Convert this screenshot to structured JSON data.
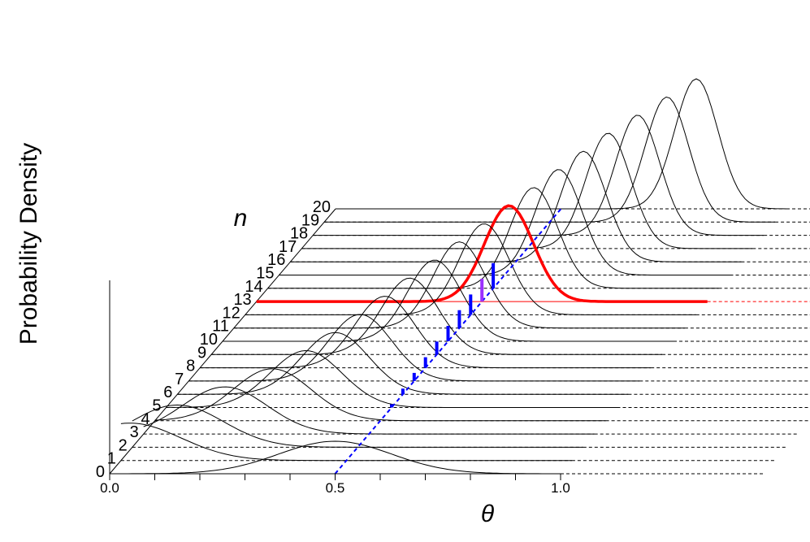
{
  "chart_data": {
    "type": "line",
    "ylabel": "Probability Density",
    "xlabel": "θ",
    "depth_label": "n",
    "xlim": [
      0.0,
      1.0
    ],
    "x_ticks": [
      "0.0",
      "0.5",
      "1.0"
    ],
    "depth_ticks": [
      "0",
      "1",
      "2",
      "3",
      "4",
      "5",
      "6",
      "7",
      "8",
      "9",
      "10",
      "11",
      "12",
      "13",
      "14",
      "15",
      "16",
      "17",
      "18",
      "19",
      "20"
    ],
    "highlight": {
      "n": "13",
      "color": "#ff0000"
    },
    "series": [
      {
        "n": "0",
        "mean": 0.5
      },
      {
        "n": "1",
        "mean": 0.02
      },
      {
        "n": "2",
        "mean": 0.1
      },
      {
        "n": "3",
        "mean": 0.18
      },
      {
        "n": "4",
        "mean": 0.26
      },
      {
        "n": "5",
        "mean": 0.31
      },
      {
        "n": "6",
        "mean": 0.35
      },
      {
        "n": "7",
        "mean": 0.38
      },
      {
        "n": "8",
        "mean": 0.41
      },
      {
        "n": "9",
        "mean": 0.44
      },
      {
        "n": "10",
        "mean": 0.47
      },
      {
        "n": "11",
        "mean": 0.5
      },
      {
        "n": "12",
        "mean": 0.53
      },
      {
        "n": "13",
        "mean": 0.56
      },
      {
        "n": "14",
        "mean": 0.59
      },
      {
        "n": "15",
        "mean": 0.62
      },
      {
        "n": "16",
        "mean": 0.65
      },
      {
        "n": "17",
        "mean": 0.68
      },
      {
        "n": "18",
        "mean": 0.72
      },
      {
        "n": "19",
        "mean": 0.76
      },
      {
        "n": "20",
        "mean": 0.8
      }
    ],
    "mean_line_color": "#0000ff",
    "interval_color": "#0000ff",
    "interval_highlight_color": "#9b30ff"
  }
}
